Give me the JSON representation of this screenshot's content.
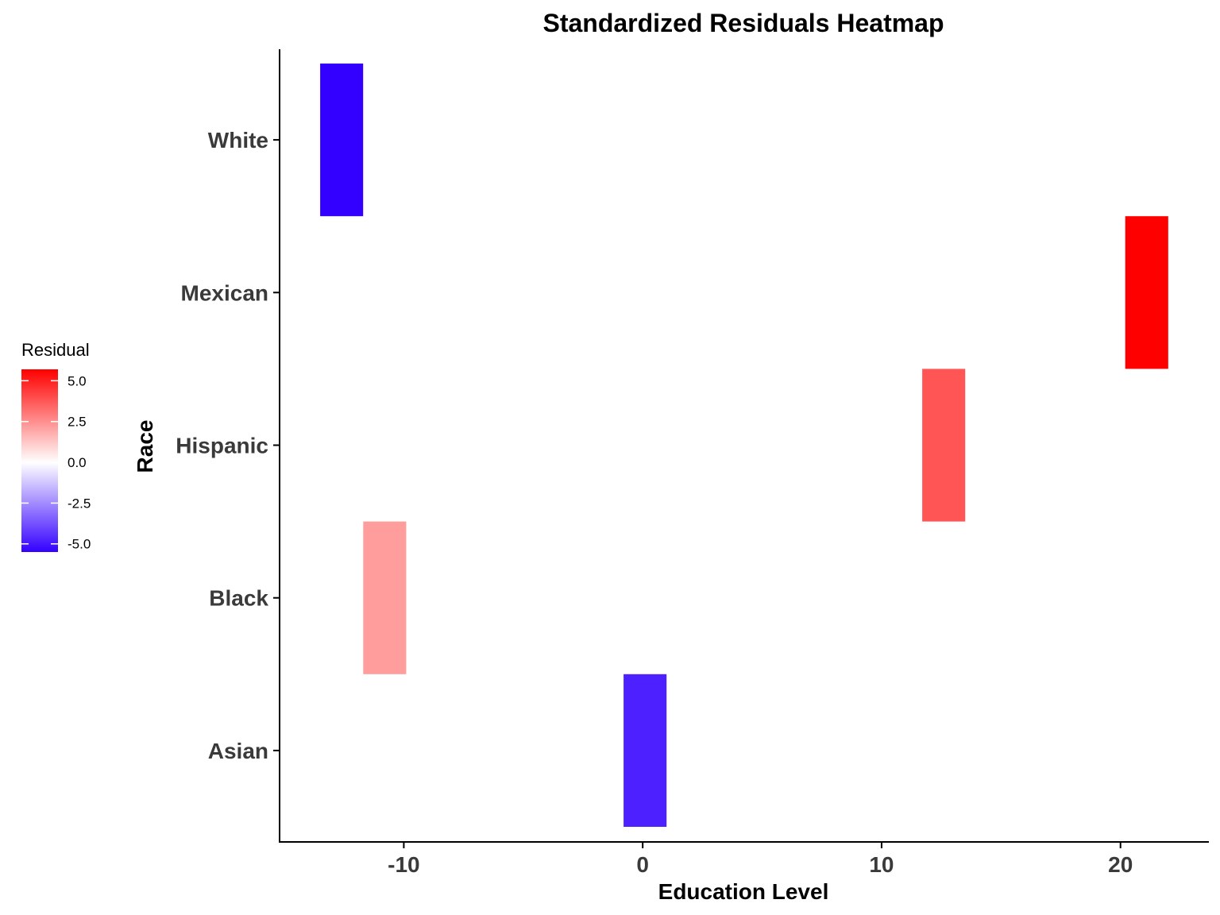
{
  "chart_data": {
    "type": "heatmap",
    "title": "Standardized Residuals Heatmap",
    "xlabel": "Education Level",
    "ylabel": "Race",
    "x_ticks": [
      -10,
      0,
      10,
      20
    ],
    "xlim": [
      -15.2,
      23.7
    ],
    "categories": [
      "Asian",
      "Black",
      "Hispanic",
      "Mexican",
      "White"
    ],
    "cells": [
      {
        "race": "White",
        "x": -12.6,
        "residual": -5.5
      },
      {
        "race": "Black",
        "x": -10.8,
        "residual": 2.2
      },
      {
        "race": "Asian",
        "x": 0.1,
        "residual": -4.8
      },
      {
        "race": "Hispanic",
        "x": 12.6,
        "residual": 3.8
      },
      {
        "race": "Mexican",
        "x": 21.1,
        "residual": 5.7
      }
    ],
    "cell_width": 1.8,
    "legend": {
      "title": "Residual",
      "range": [
        -5.5,
        5.7
      ],
      "ticks": [
        5.0,
        2.5,
        0.0,
        -2.5,
        -5.0
      ],
      "tick_labels": [
        "5.0",
        "2.5",
        "0.0",
        "-2.5",
        "-5.0"
      ],
      "colors": {
        "low": "#3300ff",
        "mid": "#ffffff",
        "high": "#ff0000"
      },
      "position": "left"
    },
    "grid": false
  }
}
